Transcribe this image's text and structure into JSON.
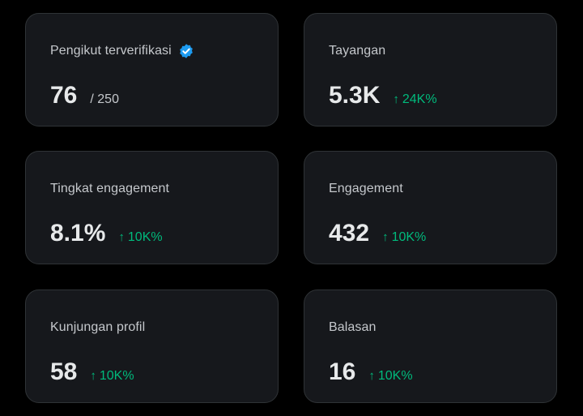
{
  "colors": {
    "background": "#000000",
    "card_background": "#16181c",
    "card_border": "#2f3336",
    "positive_delta": "#00ba7c",
    "verified_badge": "#1d9bf0"
  },
  "cards": [
    {
      "label": "Pengikut terverifikasi",
      "value": "76",
      "total": "/ 250",
      "icon": "verified-badge-icon"
    },
    {
      "label": "Tayangan",
      "value": "5.3K",
      "delta": "24K%",
      "delta_icon": "arrow-up-icon"
    },
    {
      "label": "Tingkat engagement",
      "value": "8.1%",
      "delta": "10K%",
      "delta_icon": "arrow-up-icon"
    },
    {
      "label": "Engagement",
      "value": "432",
      "delta": "10K%",
      "delta_icon": "arrow-up-icon"
    },
    {
      "label": "Kunjungan profil",
      "value": "58",
      "delta": "10K%",
      "delta_icon": "arrow-up-icon"
    },
    {
      "label": "Balasan",
      "value": "16",
      "delta": "10K%",
      "delta_icon": "arrow-up-icon"
    }
  ]
}
